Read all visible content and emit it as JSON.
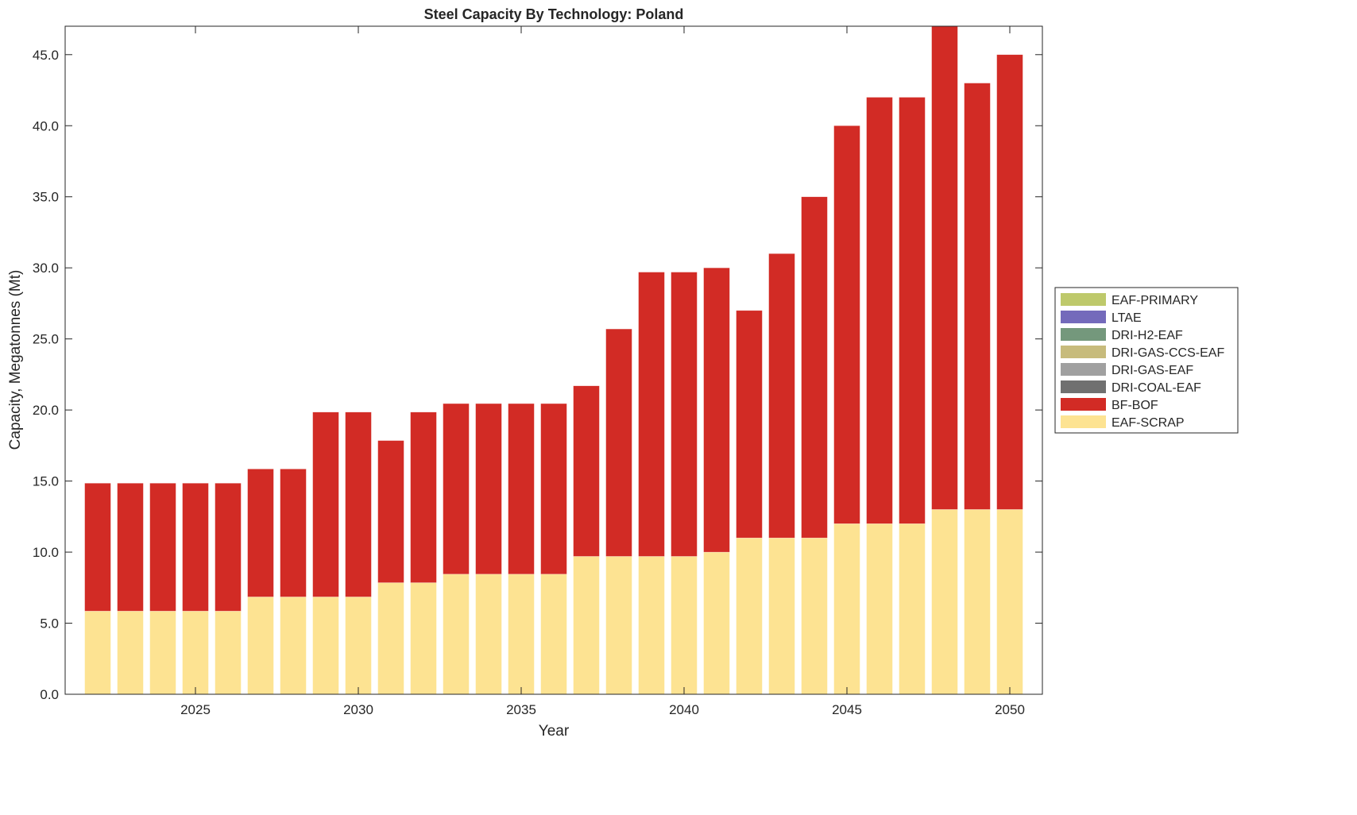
{
  "chart_data": {
    "type": "bar",
    "stacked": true,
    "title": "Steel Capacity By Technology: Poland",
    "xlabel": "Year",
    "ylabel": "Capacity, Megatonnes (Mt)",
    "xlim": [
      2021,
      2051
    ],
    "ylim": [
      0,
      47
    ],
    "xticks": [
      2025,
      2030,
      2035,
      2040,
      2045,
      2050
    ],
    "yticks": [
      "0.0",
      "5.0",
      "10.0",
      "15.0",
      "20.0",
      "25.0",
      "30.0",
      "35.0",
      "40.0",
      "45.0"
    ],
    "grid": false,
    "legend_position": "right",
    "x": [
      2022,
      2023,
      2024,
      2025,
      2026,
      2027,
      2028,
      2029,
      2030,
      2031,
      2032,
      2033,
      2034,
      2035,
      2036,
      2037,
      2038,
      2039,
      2040,
      2041,
      2042,
      2043,
      2044,
      2045,
      2046,
      2047,
      2048,
      2049,
      2050
    ],
    "series": [
      {
        "name": "EAF-SCRAP",
        "color": "#fde392",
        "values": [
          5.85,
          5.85,
          5.85,
          5.85,
          5.85,
          6.85,
          6.85,
          6.85,
          6.85,
          7.85,
          7.85,
          8.45,
          8.45,
          8.45,
          8.45,
          9.7,
          9.7,
          9.7,
          9.7,
          10.0,
          11.0,
          11.0,
          11.0,
          12.0,
          12.0,
          12.0,
          13.0,
          13.0,
          13.0
        ]
      },
      {
        "name": "BF-BOF",
        "color": "#d22b25",
        "values": [
          9.0,
          9.0,
          9.0,
          9.0,
          9.0,
          9.0,
          9.0,
          13.0,
          13.0,
          10.0,
          12.0,
          12.0,
          12.0,
          12.0,
          12.0,
          12.0,
          16.0,
          20.0,
          20.0,
          20.0,
          16.0,
          20.0,
          24.0,
          28.0,
          30.0,
          30.0,
          34.0,
          30.0,
          32.0
        ]
      },
      {
        "name": "DRI-COAL-EAF",
        "color": "#707070",
        "values": [
          0,
          0,
          0,
          0,
          0,
          0,
          0,
          0,
          0,
          0,
          0,
          0,
          0,
          0,
          0,
          0,
          0,
          0,
          0,
          0,
          0,
          0,
          0,
          0,
          0,
          0,
          0,
          0,
          0
        ]
      },
      {
        "name": "DRI-GAS-EAF",
        "color": "#a0a0a0",
        "values": [
          0,
          0,
          0,
          0,
          0,
          0,
          0,
          0,
          0,
          0,
          0,
          0,
          0,
          0,
          0,
          0,
          0,
          0,
          0,
          0,
          0,
          0,
          0,
          0,
          0,
          0,
          0,
          0,
          0
        ]
      },
      {
        "name": "DRI-GAS-CCS-EAF",
        "color": "#c7bb7c",
        "values": [
          0,
          0,
          0,
          0,
          0,
          0,
          0,
          0,
          0,
          0,
          0,
          0,
          0,
          0,
          0,
          0,
          0,
          0,
          0,
          0,
          0,
          0,
          0,
          0,
          0,
          0,
          0,
          0,
          0
        ]
      },
      {
        "name": "DRI-H2-EAF",
        "color": "#74987c",
        "values": [
          0,
          0,
          0,
          0,
          0,
          0,
          0,
          0,
          0,
          0,
          0,
          0,
          0,
          0,
          0,
          0,
          0,
          0,
          0,
          0,
          0,
          0,
          0,
          0,
          0,
          0,
          0,
          0,
          0
        ]
      },
      {
        "name": "LTAE",
        "color": "#746abb",
        "values": [
          0,
          0,
          0,
          0,
          0,
          0,
          0,
          0,
          0,
          0,
          0,
          0,
          0,
          0,
          0,
          0,
          0,
          0,
          0,
          0,
          0,
          0,
          0,
          0,
          0,
          0,
          0,
          0,
          0
        ]
      },
      {
        "name": "EAF-PRIMARY",
        "color": "#bec96b",
        "values": [
          0,
          0,
          0,
          0,
          0,
          0,
          0,
          0,
          0,
          0,
          0,
          0,
          0,
          0,
          0,
          0,
          0,
          0,
          0,
          0,
          0,
          0,
          0,
          0,
          0,
          0,
          0,
          0,
          0
        ]
      }
    ],
    "legend_order": [
      "EAF-PRIMARY",
      "LTAE",
      "DRI-H2-EAF",
      "DRI-GAS-CCS-EAF",
      "DRI-GAS-EAF",
      "DRI-COAL-EAF",
      "BF-BOF",
      "EAF-SCRAP"
    ]
  }
}
